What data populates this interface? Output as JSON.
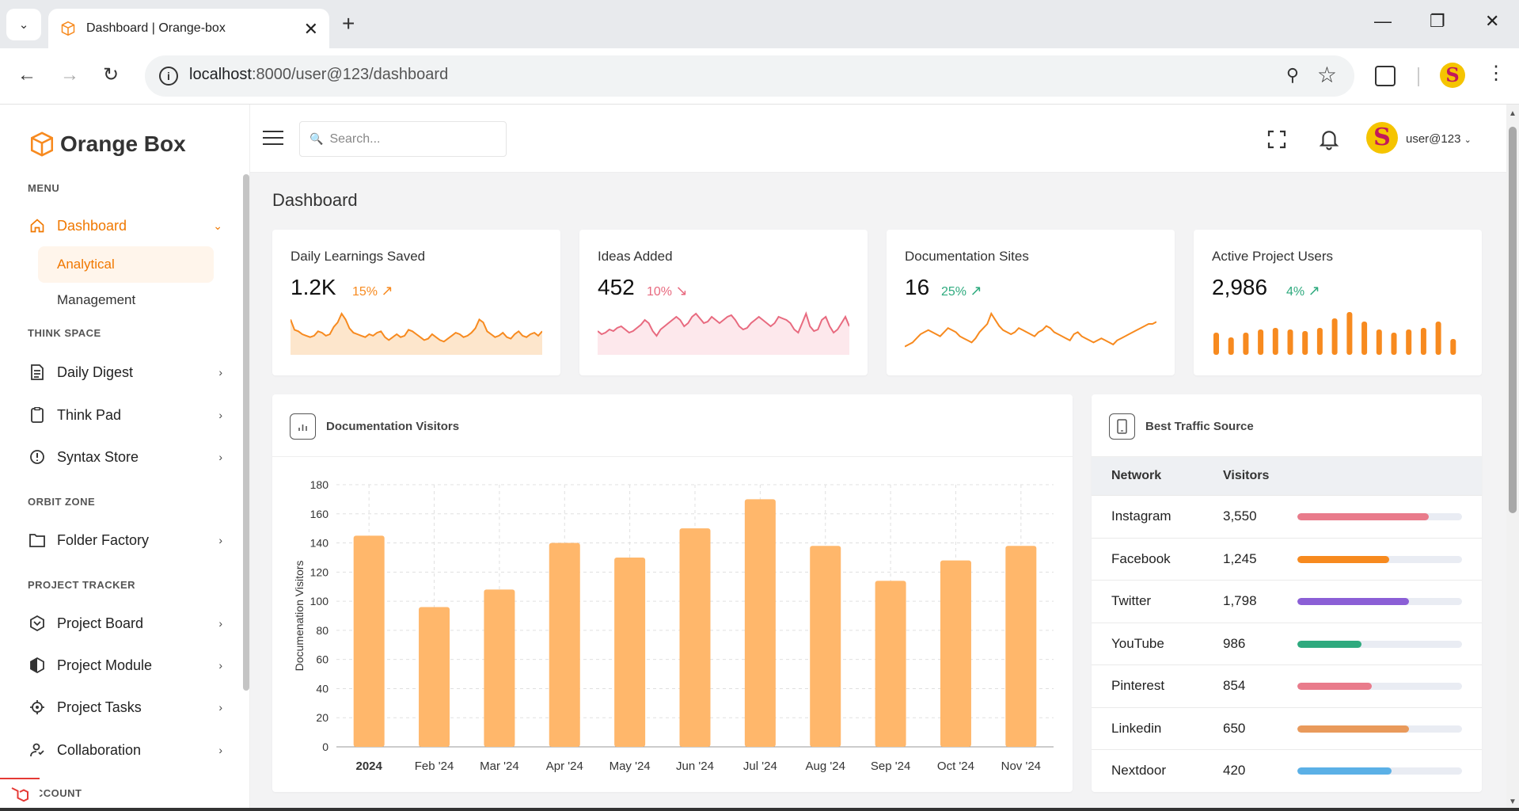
{
  "browser": {
    "tab_title": "Dashboard | Orange-box",
    "url_host": "localhost",
    "url_rest": ":8000/user@123/dashboard",
    "profile_initial": "S"
  },
  "sidebar": {
    "brand": "Orange Box",
    "sections": {
      "menu": "MENU",
      "think_space": "THINK SPACE",
      "orbit_zone": "ORBIT ZONE",
      "project_tracker": "PROJECT TRACKER",
      "account": "ACCOUNT"
    },
    "dashboard": "Dashboard",
    "dashboard_sub": [
      "Analytical",
      "Management"
    ],
    "items": [
      "Daily Digest",
      "Think Pad",
      "Syntax Store",
      "Folder Factory",
      "Project Board",
      "Project Module",
      "Project Tasks",
      "Collaboration"
    ]
  },
  "topbar": {
    "search_placeholder": "Search...",
    "user_name": "user@123",
    "user_initial": "S"
  },
  "page": {
    "title": "Dashboard"
  },
  "stats": [
    {
      "title": "Daily Learnings Saved",
      "value": "1.2K",
      "delta": "15%",
      "trend": "up",
      "color": "#f78a1f",
      "spark": [
        24,
        17,
        16,
        14,
        13,
        12,
        13,
        16,
        15,
        13,
        14,
        19,
        22,
        28,
        24,
        18,
        15,
        14,
        13,
        12,
        14,
        13,
        15,
        16,
        12,
        10,
        12,
        14,
        12,
        13,
        17,
        16,
        14,
        12,
        10,
        11,
        14,
        12,
        10,
        9,
        11,
        13,
        15,
        14,
        12,
        13,
        15,
        18,
        24,
        22,
        16,
        14,
        12,
        13,
        15,
        12,
        11,
        14,
        16,
        13,
        12,
        14,
        15,
        13,
        16
      ]
    },
    {
      "title": "Ideas Added",
      "value": "452",
      "delta": "10%",
      "trend": "down",
      "color": "#e86a7f",
      "spark": [
        15,
        13,
        14,
        16,
        15,
        17,
        18,
        16,
        14,
        15,
        17,
        19,
        22,
        20,
        15,
        12,
        16,
        18,
        20,
        22,
        24,
        22,
        18,
        20,
        24,
        26,
        23,
        20,
        21,
        24,
        22,
        20,
        22,
        24,
        25,
        22,
        18,
        16,
        17,
        20,
        22,
        24,
        22,
        20,
        18,
        20,
        24,
        23,
        22,
        20,
        16,
        14,
        20,
        26,
        18,
        15,
        16,
        22,
        24,
        18,
        14,
        16,
        20,
        24,
        18
      ]
    },
    {
      "title": "Documentation Sites",
      "value": "16",
      "delta": "25%",
      "trend": "up",
      "color": "#f78a1f",
      "spark": [
        8,
        10,
        12,
        16,
        20,
        22,
        24,
        22,
        20,
        18,
        22,
        26,
        24,
        22,
        18,
        16,
        14,
        12,
        16,
        22,
        26,
        30,
        40,
        34,
        28,
        24,
        22,
        20,
        22,
        26,
        24,
        22,
        20,
        18,
        22,
        24,
        28,
        26,
        22,
        20,
        18,
        16,
        14,
        20,
        22,
        18,
        16,
        14,
        12,
        14,
        16,
        14,
        12,
        10,
        14,
        16,
        18,
        20,
        22,
        24,
        26,
        28,
        30,
        30,
        32
      ]
    },
    {
      "title": "Active Project Users",
      "value": "2,986",
      "delta": "4%",
      "trend": "up",
      "color": "#f78a1f",
      "bars": [
        28,
        22,
        28,
        32,
        34,
        32,
        30,
        34,
        46,
        54,
        42,
        32,
        28,
        32,
        34,
        42,
        20
      ]
    }
  ],
  "visitors_chart": {
    "title": "Documentation Visitors",
    "chart_data": {
      "type": "bar",
      "categories": [
        "2024",
        "Feb '24",
        "Mar '24",
        "Apr '24",
        "May '24",
        "Jun '24",
        "Jul '24",
        "Aug '24",
        "Sep '24",
        "Oct '24",
        "Nov '24"
      ],
      "values": [
        145,
        96,
        108,
        140,
        130,
        150,
        170,
        138,
        114,
        128,
        138
      ],
      "ylabel": "Documenation Visitors",
      "ylim": [
        0,
        180
      ],
      "yticks": [
        0,
        20,
        40,
        60,
        80,
        100,
        120,
        140,
        160,
        180
      ],
      "bar_color": "#ffb76b"
    }
  },
  "traffic": {
    "title": "Best Traffic Source",
    "headers": {
      "network": "Network",
      "visitors": "Visitors"
    },
    "rows": [
      {
        "network": "Instagram",
        "visitors": "3,550",
        "pct": 80,
        "color": "#e97b8b"
      },
      {
        "network": "Facebook",
        "visitors": "1,245",
        "pct": 56,
        "color": "#f78a1f"
      },
      {
        "network": "Twitter",
        "visitors": "1,798",
        "pct": 68,
        "color": "#8b5fd6"
      },
      {
        "network": "YouTube",
        "visitors": "986",
        "pct": 39,
        "color": "#2eaa7e"
      },
      {
        "network": "Pinterest",
        "visitors": "854",
        "pct": 45,
        "color": "#e97b8b"
      },
      {
        "network": "Linkedin",
        "visitors": "650",
        "pct": 68,
        "color": "#e99a5b"
      },
      {
        "network": "Nextdoor",
        "visitors": "420",
        "pct": 57,
        "color": "#5bb0e6"
      }
    ]
  }
}
